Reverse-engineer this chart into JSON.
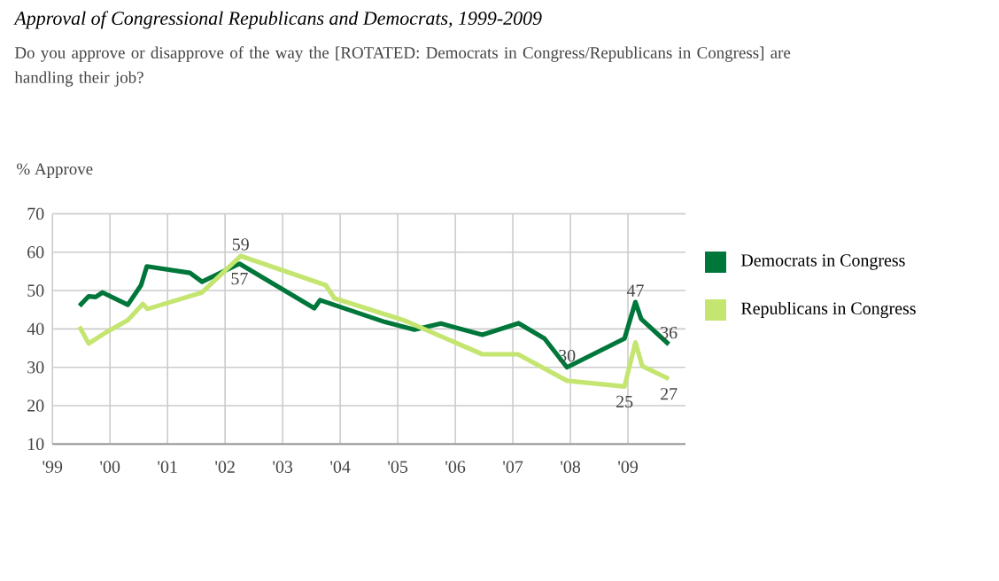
{
  "chart_data": {
    "type": "line",
    "title": "Approval of Congressional Republicans and Democrats, 1999-2009",
    "subtitle": "Do you approve or disapprove of the way the [ROTATED: Democrats in Congress/Republicans in Congress] are handling their job?",
    "ylabel": "% Approve",
    "xlim": [
      1999,
      2010
    ],
    "ylim": [
      10,
      70
    ],
    "xticks": [
      {
        "value": 1999,
        "label": "'99"
      },
      {
        "value": 2000,
        "label": "'00"
      },
      {
        "value": 2001,
        "label": "'01"
      },
      {
        "value": 2002,
        "label": "'02"
      },
      {
        "value": 2003,
        "label": "'03"
      },
      {
        "value": 2004,
        "label": "'04"
      },
      {
        "value": 2005,
        "label": "'05"
      },
      {
        "value": 2006,
        "label": "'06"
      },
      {
        "value": 2007,
        "label": "'07"
      },
      {
        "value": 2008,
        "label": "'08"
      },
      {
        "value": 2009,
        "label": "'09"
      }
    ],
    "yticks": [
      10,
      20,
      30,
      40,
      50,
      60,
      70
    ],
    "grid": true,
    "legend": "right",
    "marker": "none",
    "series": [
      {
        "name": "Democrats in Congress",
        "color": "#00773a",
        "x": [
          1999.47,
          1999.63,
          1999.75,
          1999.87,
          2000.31,
          2000.54,
          2000.64,
          2001.39,
          2001.6,
          2002.25,
          2003.55,
          2003.65,
          2004.78,
          2005.29,
          2005.75,
          2006.47,
          2007.1,
          2007.55,
          2007.94,
          2008.94,
          2009.13,
          2009.23,
          2009.71
        ],
        "values": [
          46,
          48.5,
          48.3,
          49.5,
          46.3,
          51.4,
          56.3,
          54.6,
          52.3,
          57,
          45.4,
          47.5,
          41.8,
          39.8,
          41.4,
          38.5,
          41.5,
          37.5,
          30,
          37.5,
          47,
          42.6,
          36
        ]
      },
      {
        "name": "Republicans in Congress",
        "color": "#c4e56f",
        "x": [
          1999.47,
          1999.63,
          1999.9,
          2000.31,
          2000.57,
          2000.65,
          2001.6,
          2002.27,
          2003.75,
          2003.9,
          2005.1,
          2006.47,
          2007.09,
          2007.94,
          2008.94,
          2009.13,
          2009.25,
          2009.71
        ],
        "values": [
          40.6,
          36.2,
          38.8,
          42.3,
          46.5,
          45.2,
          49.5,
          59,
          51.4,
          48,
          42.3,
          33.4,
          33.4,
          26.5,
          25,
          36.5,
          30.3,
          27
        ]
      }
    ],
    "annotations": [
      {
        "text": "59",
        "x": 2002.27,
        "y": 59
      },
      {
        "text": "57",
        "x": 2002.25,
        "y": 57
      },
      {
        "text": "30",
        "x": 2007.94,
        "y": 30
      },
      {
        "text": "47",
        "x": 2009.13,
        "y": 47
      },
      {
        "text": "36",
        "x": 2009.71,
        "y": 36
      },
      {
        "text": "25",
        "x": 2008.94,
        "y": 25
      },
      {
        "text": "27",
        "x": 2009.71,
        "y": 27
      }
    ]
  }
}
